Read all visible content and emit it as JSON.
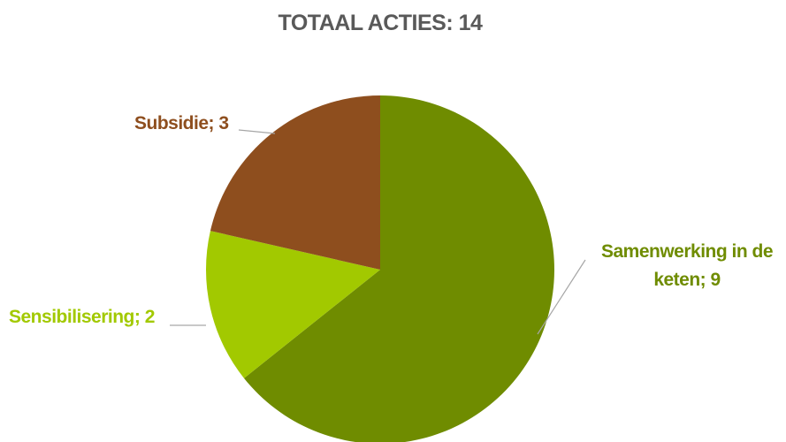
{
  "chart_data": {
    "type": "pie",
    "title": "TOTAAL ACTIES: 14",
    "slices": [
      {
        "label": "Samenwerking in de keten; 9",
        "name": "Samenwerking in de keten",
        "value": 9,
        "color": "#6f8c00"
      },
      {
        "label": "Sensibilisering; 2",
        "name": "Sensibilisering",
        "value": 2,
        "color": "#a2c900"
      },
      {
        "label": "Subsidie; 3",
        "name": "Subsidie",
        "value": 3,
        "color": "#8e4e1e"
      }
    ],
    "legend": "none"
  }
}
